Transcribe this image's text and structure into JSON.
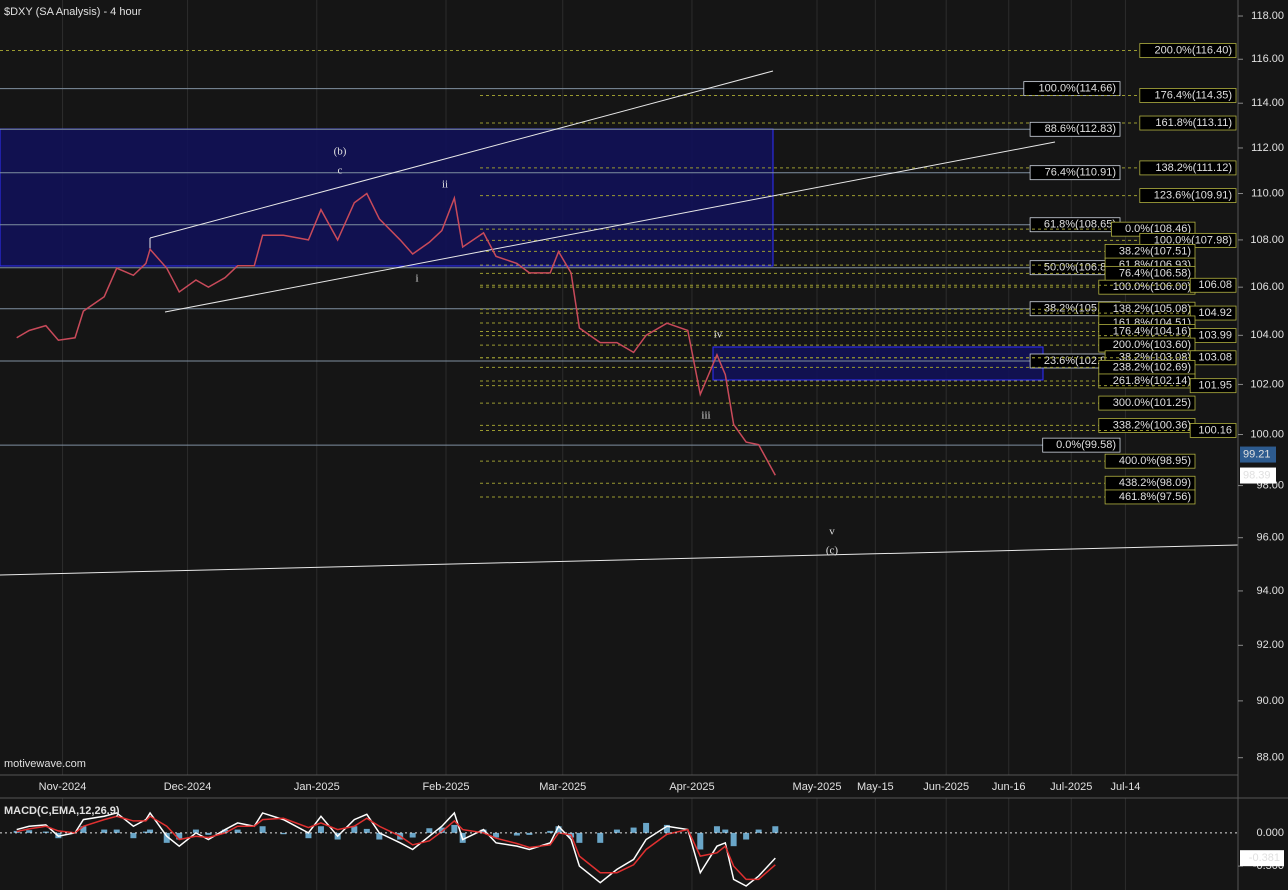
{
  "chart_data": [
    {
      "type": "line",
      "title": "$DXY (SA Analysis) - 4 hour",
      "watermark": "motivewave.com",
      "log_scale": true,
      "color": "#c84a5a",
      "x": [
        "2024-10-21",
        "2024-10-24",
        "2024-10-28",
        "2024-10-31",
        "2024-11-04",
        "2024-11-06",
        "2024-11-11",
        "2024-11-14",
        "2024-11-18",
        "2024-11-21",
        "2024-11-22",
        "2024-11-26",
        "2024-11-29",
        "2024-12-03",
        "2024-12-06",
        "2024-12-10",
        "2024-12-13",
        "2024-12-17",
        "2024-12-19",
        "2024-12-24",
        "2024-12-30",
        "2025-01-02",
        "2025-01-06",
        "2025-01-10",
        "2025-01-13",
        "2025-01-16",
        "2025-01-21",
        "2025-01-24",
        "2025-01-28",
        "2025-01-31",
        "2025-02-03",
        "2025-02-05",
        "2025-02-10",
        "2025-02-13",
        "2025-02-18",
        "2025-02-21",
        "2025-02-26",
        "2025-02-28",
        "2025-03-03",
        "2025-03-05",
        "2025-03-10",
        "2025-03-14",
        "2025-03-18",
        "2025-03-21",
        "2025-03-26",
        "2025-03-31",
        "2025-04-03",
        "2025-04-07",
        "2025-04-09",
        "2025-04-11",
        "2025-04-14",
        "2025-04-17",
        "2025-04-21"
      ],
      "values": [
        103.9,
        104.2,
        104.4,
        103.8,
        103.9,
        105.0,
        105.6,
        106.8,
        106.5,
        107.0,
        107.6,
        106.8,
        105.8,
        106.3,
        106.0,
        106.4,
        106.9,
        106.9,
        108.2,
        108.2,
        108.0,
        109.3,
        108.0,
        109.6,
        110.0,
        108.9,
        108.0,
        107.4,
        107.9,
        108.4,
        109.8,
        107.7,
        108.3,
        107.3,
        107.0,
        106.6,
        106.6,
        107.5,
        106.6,
        104.3,
        103.7,
        103.7,
        103.3,
        104.0,
        104.5,
        104.2,
        101.6,
        103.2,
        102.4,
        100.4,
        99.7,
        99.6,
        98.4
      ],
      "xlim": [
        "2024-10-17",
        "2025-08-10"
      ],
      "xticks": [
        {
          "value": "2024-11-01",
          "label": "Nov-2024"
        },
        {
          "value": "2024-12-01",
          "label": "Dec-2024"
        },
        {
          "value": "2025-01-01",
          "label": "Jan-2025"
        },
        {
          "value": "2025-02-01",
          "label": "Feb-2025"
        },
        {
          "value": "2025-03-01",
          "label": "Mar-2025"
        },
        {
          "value": "2025-04-01",
          "label": "Apr-2025"
        },
        {
          "value": "2025-05-01",
          "label": "May-2025"
        },
        {
          "value": "2025-05-15",
          "label": "May-15"
        },
        {
          "value": "2025-06-01",
          "label": "Jun-2025"
        },
        {
          "value": "2025-06-16",
          "label": "Jun-16"
        },
        {
          "value": "2025-07-01",
          "label": "Jul-2025"
        },
        {
          "value": "2025-07-14",
          "label": "Jul-14"
        }
      ],
      "ylim": [
        87.4,
        118.75
      ],
      "yticks": [
        {
          "value": 88,
          "label": "88.00"
        },
        {
          "value": 90,
          "label": "90.00"
        },
        {
          "value": 92,
          "label": "92.00"
        },
        {
          "value": 94,
          "label": "94.00"
        },
        {
          "value": 96,
          "label": "96.00"
        },
        {
          "value": 98,
          "label": "98.00"
        },
        {
          "value": 100,
          "label": "100.00"
        },
        {
          "value": 102,
          "label": "102.00"
        },
        {
          "value": 104,
          "label": "104.00"
        },
        {
          "value": 106,
          "label": "106.00"
        },
        {
          "value": 108,
          "label": "108.00"
        },
        {
          "value": 110,
          "label": "110.00"
        },
        {
          "value": 112,
          "label": "112.00"
        },
        {
          "value": 114,
          "label": "114.00"
        },
        {
          "value": 116,
          "label": "116.00"
        },
        {
          "value": 118,
          "label": "118.00"
        }
      ],
      "fib_levels": [
        {
          "label": "200.0%(116.40)",
          "value": 116.4,
          "style": "dashed"
        },
        {
          "label": "100.0%(114.66)",
          "value": 114.66,
          "style": "solid"
        },
        {
          "label": "176.4%(114.35)",
          "value": 114.35,
          "style": "dashed"
        },
        {
          "label": "161.8%(113.11)",
          "value": 113.11,
          "style": "dashed"
        },
        {
          "label": "88.6%(112.83)",
          "value": 112.83,
          "style": "solid"
        },
        {
          "label": "138.2%(111.12)",
          "value": 111.12,
          "style": "dashed"
        },
        {
          "label": "76.4%(110.91)",
          "value": 110.91,
          "style": "solid"
        },
        {
          "label": "123.6%(109.91)",
          "value": 109.91,
          "style": "dashed"
        },
        {
          "label": "61.8%(108.65)",
          "value": 108.65,
          "style": "solid"
        },
        {
          "label": "0.0%(108.46)",
          "value": 108.46,
          "style": "dashed"
        },
        {
          "label": "100.0%(107.98)",
          "value": 107.98,
          "style": "dashed"
        },
        {
          "label": "38.2%(107.51)",
          "value": 107.51,
          "style": "dashed"
        },
        {
          "label": "50.0%(106.82)",
          "value": 106.82,
          "style": "solid"
        },
        {
          "label": "61.8%(106.93)",
          "value": 106.93,
          "style": "dashed"
        },
        {
          "label": "76.4%(106.58)",
          "value": 106.58,
          "style": "dashed"
        },
        {
          "label": "100.0%(106.00)",
          "value": 106.0,
          "style": "dashed"
        },
        {
          "label": "106.08",
          "value": 106.08,
          "style": "dashed"
        },
        {
          "label": "38.2%(105.10)",
          "value": 105.1,
          "style": "solid"
        },
        {
          "label": "138.2%(105.08)",
          "value": 105.08,
          "style": "dashed"
        },
        {
          "label": "104.92",
          "value": 104.92,
          "style": "dashed"
        },
        {
          "label": "161.8%(104.51)",
          "value": 104.51,
          "style": "dashed"
        },
        {
          "label": "176.4%(104.16)",
          "value": 104.16,
          "style": "dashed"
        },
        {
          "label": "103.99",
          "value": 103.99,
          "style": "dashed"
        },
        {
          "label": "200.0%(103.60)",
          "value": 103.6,
          "style": "dashed"
        },
        {
          "label": "23.6%(102.95)",
          "value": 102.95,
          "style": "solid"
        },
        {
          "label": "38.2%(103.08)",
          "value": 103.08,
          "style": "dashed"
        },
        {
          "label": "103.08",
          "value": 103.08,
          "style": "dashed"
        },
        {
          "label": "238.2%(102.69)",
          "value": 102.69,
          "style": "dashed"
        },
        {
          "label": "261.8%(102.14)",
          "value": 102.14,
          "style": "dashed"
        },
        {
          "label": "101.95",
          "value": 101.95,
          "style": "dashed"
        },
        {
          "label": "300.0%(101.25)",
          "value": 101.25,
          "style": "dashed"
        },
        {
          "label": "338.2%(100.36)",
          "value": 100.36,
          "style": "dashed"
        },
        {
          "label": "100.16",
          "value": 100.16,
          "style": "dashed"
        },
        {
          "label": "0.0%(99.58)",
          "value": 99.58,
          "style": "solid"
        },
        {
          "label": "400.0%(98.95)",
          "value": 98.95,
          "style": "dashed"
        },
        {
          "label": "438.2%(98.09)",
          "value": 98.09,
          "style": "dashed"
        },
        {
          "label": "461.8%(97.56)",
          "value": 97.56,
          "style": "dashed"
        }
      ],
      "wave_labels": [
        "(b)",
        "c",
        "ii",
        "i",
        "iv",
        "iii",
        "v",
        "(c)"
      ],
      "current_price_labels": [
        {
          "value": 99.21,
          "color": "#2d5b8f"
        },
        {
          "value": 98.39,
          "color": "#ffffff"
        }
      ]
    },
    {
      "type": "macd",
      "title": "MACD(C,EMA,12,26,9)",
      "x": [
        "2024-10-21",
        "2024-10-24",
        "2024-10-28",
        "2024-10-31",
        "2024-11-04",
        "2024-11-06",
        "2024-11-11",
        "2024-11-14",
        "2024-11-18",
        "2024-11-21",
        "2024-11-22",
        "2024-11-26",
        "2024-11-29",
        "2024-12-03",
        "2024-12-06",
        "2024-12-10",
        "2024-12-13",
        "2024-12-17",
        "2024-12-19",
        "2024-12-24",
        "2024-12-30",
        "2025-01-02",
        "2025-01-06",
        "2025-01-10",
        "2025-01-13",
        "2025-01-16",
        "2025-01-21",
        "2025-01-24",
        "2025-01-28",
        "2025-01-31",
        "2025-02-03",
        "2025-02-05",
        "2025-02-10",
        "2025-02-13",
        "2025-02-18",
        "2025-02-21",
        "2025-02-26",
        "2025-02-28",
        "2025-03-03",
        "2025-03-05",
        "2025-03-10",
        "2025-03-14",
        "2025-03-18",
        "2025-03-21",
        "2025-03-26",
        "2025-03-31",
        "2025-04-03",
        "2025-04-07",
        "2025-04-09",
        "2025-04-11",
        "2025-04-14",
        "2025-04-17",
        "2025-04-21"
      ],
      "series": [
        {
          "color": "#ffffff",
          "values": [
            0.05,
            0.1,
            0.12,
            -0.05,
            0.0,
            0.2,
            0.25,
            0.3,
            0.1,
            0.2,
            0.3,
            -0.05,
            -0.2,
            0.0,
            -0.1,
            0.05,
            0.15,
            0.1,
            0.3,
            0.2,
            0.0,
            0.25,
            -0.05,
            0.2,
            0.28,
            0.0,
            -0.15,
            -0.25,
            -0.05,
            0.1,
            0.3,
            -0.1,
            0.05,
            -0.15,
            -0.2,
            -0.25,
            -0.15,
            0.1,
            -0.1,
            -0.5,
            -0.75,
            -0.55,
            -0.4,
            -0.1,
            0.1,
            0.05,
            -0.6,
            -0.2,
            -0.15,
            -0.7,
            -0.8,
            -0.65,
            -0.38
          ]
        },
        {
          "color": "#e03030",
          "values": [
            0.02,
            0.06,
            0.1,
            0.03,
            0.0,
            0.1,
            0.2,
            0.25,
            0.18,
            0.18,
            0.25,
            0.1,
            -0.1,
            -0.05,
            -0.07,
            0.0,
            0.1,
            0.1,
            0.2,
            0.22,
            0.08,
            0.15,
            0.05,
            0.1,
            0.22,
            0.1,
            -0.05,
            -0.18,
            -0.12,
            0.02,
            0.18,
            0.05,
            0.0,
            -0.08,
            -0.16,
            -0.22,
            -0.18,
            0.0,
            -0.03,
            -0.35,
            -0.6,
            -0.6,
            -0.48,
            -0.25,
            -0.02,
            0.05,
            -0.35,
            -0.3,
            -0.2,
            -0.5,
            -0.7,
            -0.7,
            -0.48
          ]
        }
      ],
      "histogram": {
        "color": "#6aa6c8",
        "values": [
          0.03,
          0.04,
          0.02,
          -0.08,
          0.0,
          0.1,
          0.05,
          0.05,
          -0.08,
          0.02,
          0.05,
          -0.15,
          -0.1,
          0.05,
          -0.03,
          0.05,
          0.05,
          0.0,
          0.1,
          -0.02,
          -0.08,
          0.1,
          -0.1,
          0.1,
          0.06,
          -0.1,
          -0.1,
          -0.07,
          0.07,
          0.08,
          0.12,
          -0.15,
          0.05,
          -0.07,
          -0.04,
          -0.03,
          0.03,
          0.1,
          -0.07,
          -0.15,
          -0.15,
          0.05,
          0.08,
          0.15,
          0.12,
          0.0,
          -0.25,
          0.1,
          0.05,
          -0.2,
          -0.1,
          0.05,
          0.1
        ]
      },
      "xlim": [
        "2024-10-17",
        "2025-08-10"
      ],
      "ylim": [
        -0.83,
        0.45
      ],
      "yticks": [
        {
          "value": 0,
          "label": "0.000"
        },
        {
          "value": -0.5,
          "label": "-0.500"
        }
      ],
      "current_value": -0.381
    }
  ]
}
